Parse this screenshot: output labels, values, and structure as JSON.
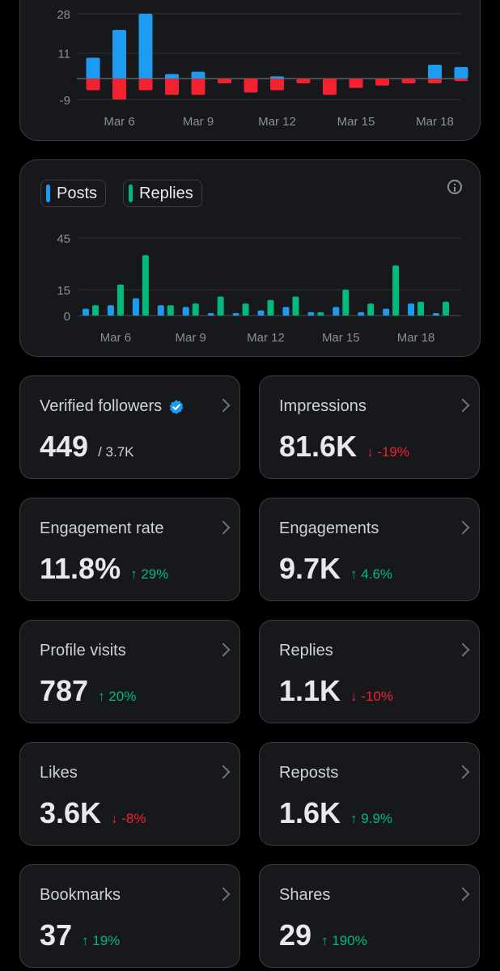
{
  "charts": {
    "growth": {
      "type": "bar",
      "y_ticks": [
        "28",
        "11",
        "-9"
      ],
      "x_ticks": [
        "Mar 6",
        "Mar 9",
        "Mar 12",
        "Mar 15",
        "Mar 18"
      ],
      "categories": [
        "Mar 5",
        "Mar 6",
        "Mar 7",
        "Mar 8",
        "Mar 9",
        "Mar 10",
        "Mar 11",
        "Mar 12",
        "Mar 13",
        "Mar 14",
        "Mar 15",
        "Mar 16",
        "Mar 17",
        "Mar 18",
        "Mar 19"
      ],
      "positive_values": [
        9,
        21,
        28,
        2,
        3,
        0,
        0,
        1,
        0,
        0,
        0,
        0,
        0,
        6,
        5
      ],
      "negative_values": [
        -5,
        -9,
        -5,
        -7,
        -7,
        -2,
        -6,
        -5,
        -2,
        -7,
        -4,
        -3,
        -2,
        -2,
        -1
      ],
      "ylim": [
        -9,
        28
      ],
      "colors": {
        "positive": "#1d9bf0",
        "negative": "#f4212e"
      }
    },
    "activity": {
      "type": "bar",
      "legend": [
        {
          "label": "Posts",
          "color": "#1d9bf0"
        },
        {
          "label": "Replies",
          "color": "#00ba7c"
        }
      ],
      "y_ticks": [
        "45",
        "15",
        "0"
      ],
      "x_ticks": [
        "Mar 6",
        "Mar 9",
        "Mar 12",
        "Mar 15",
        "Mar 18"
      ],
      "categories": [
        "Mar 5",
        "Mar 6",
        "Mar 7",
        "Mar 8",
        "Mar 9",
        "Mar 10",
        "Mar 11",
        "Mar 12",
        "Mar 13",
        "Mar 14",
        "Mar 15",
        "Mar 16",
        "Mar 17",
        "Mar 18",
        "Mar 19"
      ],
      "series": [
        {
          "name": "Posts",
          "values": [
            4,
            6,
            10,
            6,
            5,
            1,
            1,
            3,
            5,
            2,
            5,
            2,
            4,
            7,
            1
          ]
        },
        {
          "name": "Replies",
          "values": [
            6,
            18,
            35,
            6,
            7,
            11,
            7,
            9,
            11,
            2,
            15,
            7,
            29,
            8,
            8
          ]
        }
      ],
      "ylim": [
        0,
        45
      ]
    }
  },
  "metrics": [
    {
      "label": "Verified followers",
      "value": "449",
      "total": "/ 3.7K",
      "verified": true
    },
    {
      "label": "Impressions",
      "value": "81.6K",
      "change": "↓ -19%",
      "direction": "down"
    },
    {
      "label": "Engagement rate",
      "value": "11.8%",
      "change": "↑ 29%",
      "direction": "up"
    },
    {
      "label": "Engagements",
      "value": "9.7K",
      "change": "↑ 4.6%",
      "direction": "up"
    },
    {
      "label": "Profile visits",
      "value": "787",
      "change": "↑ 20%",
      "direction": "up"
    },
    {
      "label": "Replies",
      "value": "1.1K",
      "change": "↓ -10%",
      "direction": "down"
    },
    {
      "label": "Likes",
      "value": "3.6K",
      "change": "↓ -8%",
      "direction": "down"
    },
    {
      "label": "Reposts",
      "value": "1.6K",
      "change": "↑ 9.9%",
      "direction": "up"
    },
    {
      "label": "Bookmarks",
      "value": "37",
      "change": "↑ 19%",
      "direction": "up"
    },
    {
      "label": "Shares",
      "value": "29",
      "change": "↑ 190%",
      "direction": "up"
    }
  ],
  "colors": {
    "up": "#00ba7c",
    "down": "#f4212e",
    "verified": "#1d9bf0"
  }
}
